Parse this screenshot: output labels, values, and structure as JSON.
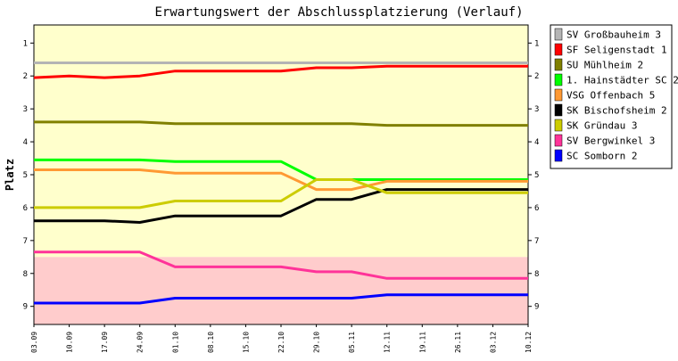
{
  "chart_data": {
    "type": "line",
    "title": "Erwartungswert der Abschlussplatzierung (Verlauf)",
    "xlabel": "",
    "ylabel": "Platz",
    "ylim": [
      0.45,
      9.55
    ],
    "y_inverted": true,
    "y_ticks": [
      "1",
      "2",
      "3",
      "4",
      "5",
      "6",
      "7",
      "8",
      "9"
    ],
    "x": [
      "03.09",
      "10.09",
      "17.09",
      "24.09",
      "01.10",
      "08.10",
      "15.10",
      "22.10",
      "29.10",
      "05.11",
      "12.11",
      "19.11",
      "26.11",
      "03.12",
      "10.12"
    ],
    "grid": false,
    "legend_position": "right",
    "zones": [
      {
        "from": 0.45,
        "to": 7.5,
        "color": "#ffffcc"
      },
      {
        "from": 7.5,
        "to": 9.55,
        "color": "#ffcccc"
      }
    ],
    "series": [
      {
        "name": "SV Großbauheim 3",
        "color": "#b4b4b4",
        "values": [
          1.6,
          1.6,
          1.6,
          1.6,
          1.6,
          1.6,
          1.6,
          1.6,
          1.6,
          1.6,
          1.6,
          1.6,
          1.6,
          1.6,
          1.6
        ]
      },
      {
        "name": "SF Seligenstadt 1",
        "color": "#ff0000",
        "values": [
          2.05,
          2.0,
          2.05,
          2.0,
          1.85,
          1.85,
          1.85,
          1.85,
          1.75,
          1.75,
          1.7,
          1.7,
          1.7,
          1.7,
          1.7
        ]
      },
      {
        "name": "SU Mühlheim 2",
        "color": "#808000",
        "values": [
          3.4,
          3.4,
          3.4,
          3.4,
          3.45,
          3.45,
          3.45,
          3.45,
          3.45,
          3.45,
          3.5,
          3.5,
          3.5,
          3.5,
          3.5
        ]
      },
      {
        "name": "1. Hainstädter SC 2",
        "color": "#00ff00",
        "values": [
          4.55,
          4.55,
          4.55,
          4.55,
          4.6,
          4.6,
          4.6,
          4.6,
          5.15,
          5.15,
          5.15,
          5.15,
          5.15,
          5.15,
          5.15
        ]
      },
      {
        "name": "VSG Offenbach 5",
        "color": "#ff9933",
        "values": [
          4.85,
          4.85,
          4.85,
          4.85,
          4.95,
          4.95,
          4.95,
          4.95,
          5.45,
          5.45,
          5.2,
          5.2,
          5.2,
          5.2,
          5.2
        ]
      },
      {
        "name": "SK Bischofsheim 2",
        "color": "#000000",
        "values": [
          6.4,
          6.4,
          6.4,
          6.45,
          6.25,
          6.25,
          6.25,
          6.25,
          5.75,
          5.75,
          5.45,
          5.45,
          5.45,
          5.45,
          5.45
        ]
      },
      {
        "name": "SK Gründau 3",
        "color": "#cccc00",
        "values": [
          6.0,
          6.0,
          6.0,
          6.0,
          5.8,
          5.8,
          5.8,
          5.8,
          5.15,
          5.15,
          5.55,
          5.55,
          5.55,
          5.55,
          5.55
        ]
      },
      {
        "name": "SV Bergwinkel 3",
        "color": "#ff3399",
        "values": [
          7.35,
          7.35,
          7.35,
          7.35,
          7.8,
          7.8,
          7.8,
          7.8,
          7.95,
          7.95,
          8.15,
          8.15,
          8.15,
          8.15,
          8.15
        ]
      },
      {
        "name": "SC Somborn 2",
        "color": "#0000ff",
        "values": [
          8.9,
          8.9,
          8.9,
          8.9,
          8.75,
          8.75,
          8.75,
          8.75,
          8.75,
          8.75,
          8.65,
          8.65,
          8.65,
          8.65,
          8.65
        ]
      }
    ]
  }
}
